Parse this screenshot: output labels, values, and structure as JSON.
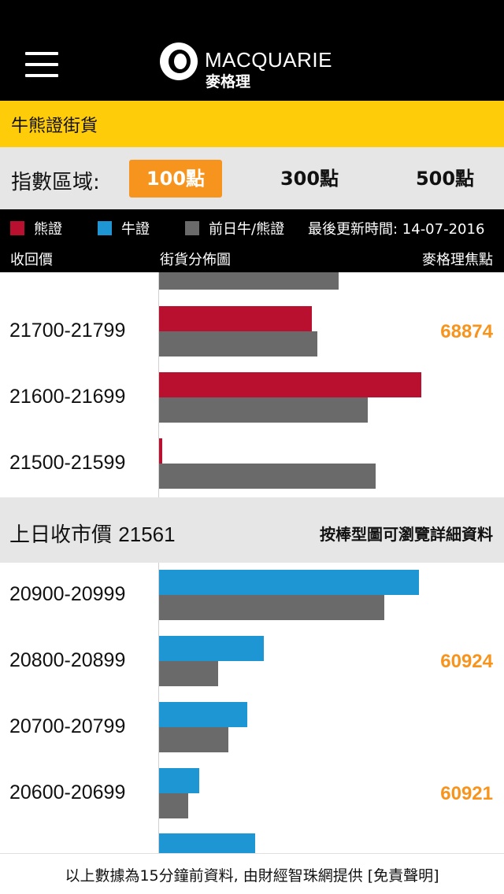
{
  "header": {
    "menu_icon": "hamburger-menu-icon",
    "brand_en": "MACQUARIE",
    "brand_zh": "麥格理"
  },
  "title": "牛熊證街貨",
  "range": {
    "label": "指數區域:",
    "options": [
      "100點",
      "300點",
      "500點"
    ],
    "selected": "100點"
  },
  "legend": {
    "bear": "熊證",
    "bull": "牛證",
    "prev": "前日牛/熊證",
    "updated": "最後更新時間: 14-07-2016",
    "colors": {
      "bear": "#b8102e",
      "bull": "#1f96d4",
      "prev": "#6a6a6a"
    }
  },
  "columns": {
    "call_price": "收回價",
    "distribution": "街貨分佈圖",
    "focus": "麥格理焦點"
  },
  "prev_close": {
    "label": "上日收市價",
    "value": "21561",
    "hint": "按棒型圖可瀏覽詳細資料"
  },
  "chart_data": {
    "type": "bar",
    "orientation": "horizontal",
    "value_scale": [
      0,
      100
    ],
    "bear_rows": [
      {
        "range": "21700-21799",
        "current": 57,
        "previous": 59,
        "focus": "68874"
      },
      {
        "range": "21600-21699",
        "current": 98,
        "previous": 78,
        "focus": ""
      },
      {
        "range": "21500-21599",
        "current": 1,
        "previous": 81,
        "focus": ""
      }
    ],
    "bull_rows": [
      {
        "range": "20900-20999",
        "current": 97,
        "previous": 84,
        "focus": ""
      },
      {
        "range": "20800-20899",
        "current": 39,
        "previous": 22,
        "focus": "60924"
      },
      {
        "range": "20700-20799",
        "current": 33,
        "previous": 26,
        "focus": ""
      },
      {
        "range": "20600-20699",
        "current": 15,
        "previous": 11,
        "focus": "60921"
      }
    ],
    "partial_top": {
      "previous": 67
    },
    "partial_bottom": {
      "current": 36
    }
  },
  "footer": "以上數據為15分鐘前資料, 由財經智珠網提供 [免責聲明]"
}
